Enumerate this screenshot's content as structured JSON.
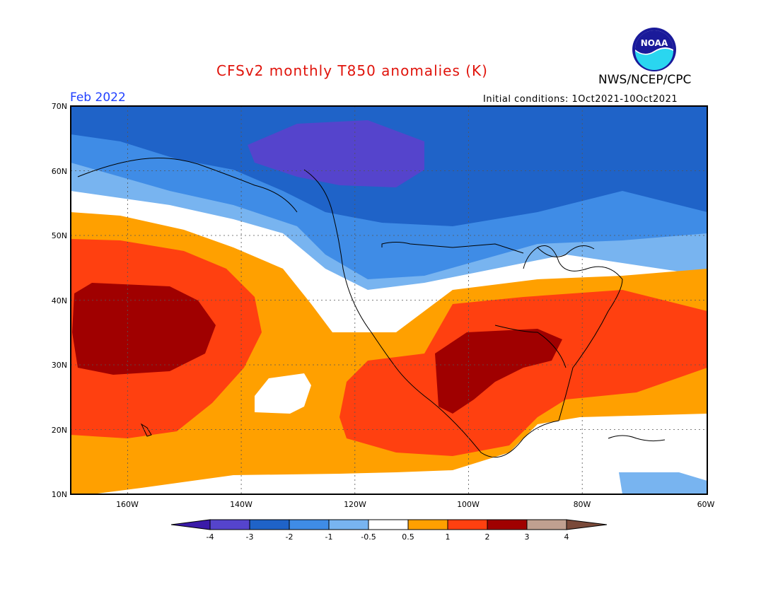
{
  "header": {
    "title": "CFSv2 monthly T850 anomalies (K)",
    "agency": "NWS/NCEP/CPC",
    "logo_text": "NOAA",
    "valid_month": "Feb 2022",
    "initial_conditions": "Initial conditions: 1Oct2021-10Oct2021"
  },
  "colors": {
    "title": "#e0140c",
    "valid_month": "#2040ff",
    "neg4": "#3a1aa8",
    "neg3": "#5544cc",
    "neg2": "#1f63c8",
    "neg1": "#3f8ce6",
    "neg05": "#78b4f0",
    "neutral": "#ffffff",
    "pos05": "#ffa000",
    "pos1": "#ff4010",
    "pos2": "#a00000",
    "pos3": "#c0a090",
    "pos4": "#7a4a3a"
  },
  "map": {
    "lon_range": [
      -172,
      -60
    ],
    "lat_range": [
      10,
      70
    ],
    "lat_ticks": [
      "10N",
      "20N",
      "30N",
      "40N",
      "50N",
      "60N",
      "70N"
    ],
    "lon_ticks": [
      "160W",
      "140W",
      "120W",
      "100W",
      "80W",
      "60W"
    ]
  },
  "colorbar": {
    "labels": [
      "-4",
      "-3",
      "-2",
      "-1",
      "-0.5",
      "0.5",
      "1",
      "2",
      "3",
      "4"
    ]
  }
}
